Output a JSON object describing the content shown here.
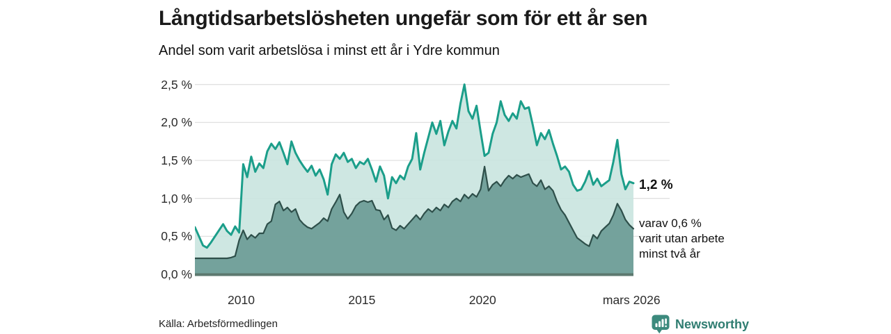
{
  "header": {
    "title": "Långtidsarbetslösheten ungefär som för ett år sen",
    "subtitle": "Andel som varit arbetslösa i minst ett år i Ydre kommun"
  },
  "annotations": {
    "latest_total": "1,2 %",
    "latest_sub_line1": "varav 0,6 %",
    "latest_sub_line2": "varit utan arbete",
    "latest_sub_line3": "minst två år"
  },
  "footer": {
    "source": "Källa: Arbetsförmedlingen",
    "brand": "Newsworthy"
  },
  "colors": {
    "series_total_line": "#1b9e8a",
    "series_total_fill": "#c7e4de",
    "series_two_years_line": "#2e4f4a",
    "series_two_years_fill": "#6f9d97",
    "gridline": "#e0e0e0",
    "axis_line": "#5d796f",
    "brand_teal": "#3c8a7d",
    "text": "#1a1a1a"
  },
  "chart_data": {
    "type": "area",
    "title": "Långtidsarbetslösheten ungefär som för ett år sen",
    "subtitle": "Andel som varit arbetslösa i minst ett år i Ydre kommun",
    "unit": "%",
    "grid": true,
    "legend_position": "none",
    "ylim": [
      0,
      2.5
    ],
    "y_ticks": [
      0,
      0.5,
      1.0,
      1.5,
      2.0,
      2.5
    ],
    "y_tick_labels": [
      "0,0 %",
      "0,5 %",
      "1,0 %",
      "1,5 %",
      "2,0 %",
      "2,5 %"
    ],
    "x_start_year": 2008.083,
    "x_end_year": 2026.25,
    "x_step_years": 0.16667,
    "x_ticks": [
      2010,
      2015,
      2020,
      2026.17
    ],
    "x_tick_labels": [
      "2010",
      "2015",
      "2020",
      "mars 2026"
    ],
    "series": [
      {
        "name": "Andel arbetslösa minst ett år",
        "latest_value": 1.2,
        "values": [
          0.62,
          0.5,
          0.38,
          0.35,
          0.42,
          0.5,
          0.58,
          0.66,
          0.57,
          0.52,
          0.63,
          0.55,
          1.45,
          1.28,
          1.55,
          1.35,
          1.46,
          1.4,
          1.62,
          1.72,
          1.65,
          1.74,
          1.6,
          1.45,
          1.75,
          1.6,
          1.5,
          1.42,
          1.35,
          1.43,
          1.3,
          1.38,
          1.25,
          1.05,
          1.45,
          1.58,
          1.52,
          1.6,
          1.48,
          1.52,
          1.4,
          1.48,
          1.45,
          1.52,
          1.38,
          1.22,
          1.42,
          1.3,
          1.0,
          1.28,
          1.2,
          1.3,
          1.25,
          1.42,
          1.52,
          1.86,
          1.38,
          1.6,
          1.8,
          2.0,
          1.85,
          2.02,
          1.7,
          1.88,
          2.02,
          1.92,
          2.25,
          2.5,
          2.15,
          2.05,
          2.22,
          1.88,
          1.56,
          1.6,
          1.85,
          2.0,
          2.28,
          2.1,
          2.02,
          2.12,
          2.05,
          2.28,
          2.18,
          2.2,
          1.96,
          1.7,
          1.86,
          1.78,
          1.9,
          1.72,
          1.56,
          1.38,
          1.42,
          1.35,
          1.18,
          1.1,
          1.12,
          1.22,
          1.36,
          1.18,
          1.26,
          1.16,
          1.2,
          1.24,
          1.48,
          1.77,
          1.32,
          1.12,
          1.22,
          1.2
        ]
      },
      {
        "name": "varav utan arbete minst två år",
        "latest_value": 0.6,
        "values": [
          0.21,
          0.21,
          0.21,
          0.21,
          0.21,
          0.21,
          0.21,
          0.21,
          0.21,
          0.22,
          0.24,
          0.45,
          0.58,
          0.46,
          0.52,
          0.48,
          0.54,
          0.54,
          0.66,
          0.7,
          0.92,
          0.96,
          0.84,
          0.88,
          0.82,
          0.86,
          0.72,
          0.66,
          0.62,
          0.6,
          0.64,
          0.68,
          0.74,
          0.7,
          0.86,
          0.95,
          1.05,
          0.82,
          0.73,
          0.8,
          0.9,
          0.95,
          0.97,
          0.95,
          0.97,
          0.85,
          0.84,
          0.72,
          0.78,
          0.61,
          0.58,
          0.64,
          0.6,
          0.66,
          0.72,
          0.78,
          0.72,
          0.8,
          0.86,
          0.82,
          0.88,
          0.84,
          0.92,
          0.88,
          0.96,
          1.0,
          0.96,
          1.05,
          1.0,
          1.06,
          1.02,
          1.12,
          1.42,
          1.1,
          1.18,
          1.22,
          1.16,
          1.24,
          1.3,
          1.26,
          1.31,
          1.28,
          1.3,
          1.32,
          1.2,
          1.16,
          1.24,
          1.12,
          1.16,
          1.1,
          0.96,
          0.85,
          0.78,
          0.68,
          0.58,
          0.48,
          0.44,
          0.4,
          0.37,
          0.52,
          0.47,
          0.57,
          0.62,
          0.67,
          0.78,
          0.93,
          0.84,
          0.72,
          0.65,
          0.6
        ]
      }
    ]
  }
}
